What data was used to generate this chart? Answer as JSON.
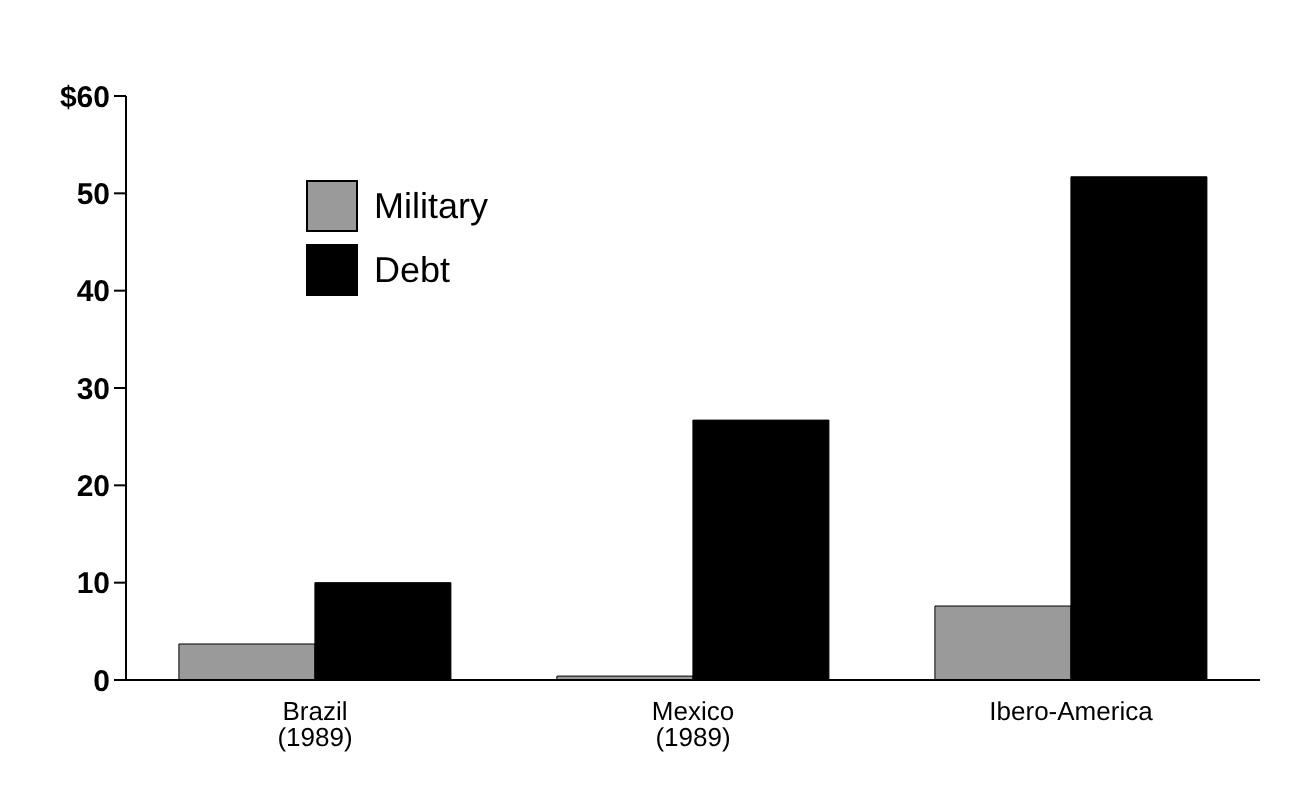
{
  "chart_data": {
    "type": "bar",
    "categories": [
      "Brazil\n(1989)",
      "Mexico\n(1989)",
      "Ibero-America"
    ],
    "series": [
      {
        "name": "Military",
        "color": "#9a9a9a",
        "values": [
          3.7,
          0.4,
          7.6
        ]
      },
      {
        "name": "Debt",
        "color": "#000000",
        "values": [
          10,
          26.7,
          51.7
        ]
      }
    ],
    "ylim": [
      0,
      60
    ],
    "yticks": [
      0,
      10,
      20,
      30,
      40,
      50,
      {
        "value": 60,
        "label": "$60"
      }
    ],
    "grid": false,
    "legend": "top left"
  }
}
